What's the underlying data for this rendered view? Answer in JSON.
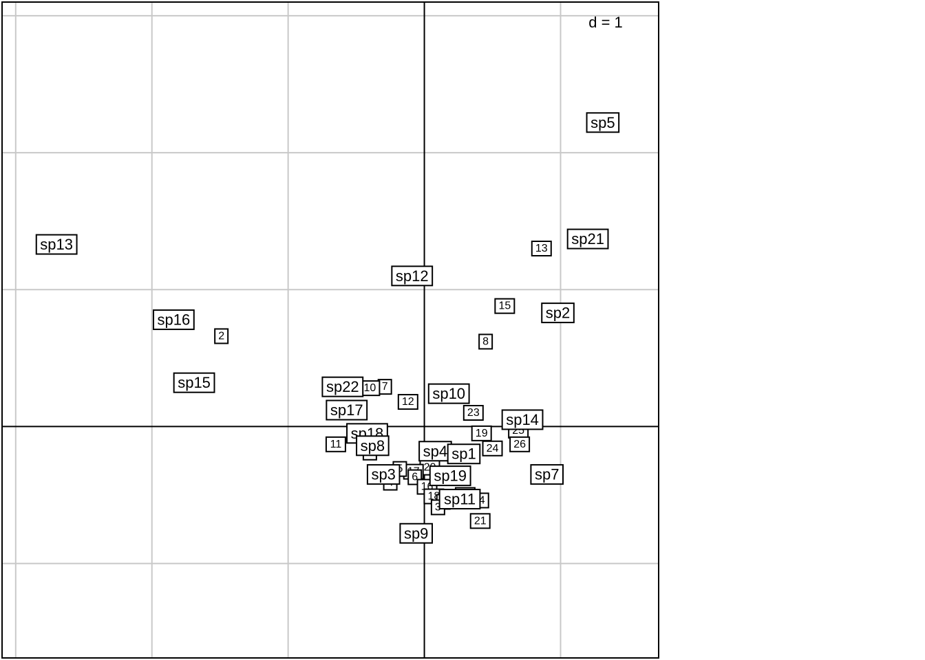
{
  "chart_data": {
    "type": "scatter",
    "scale_label": "d = 1",
    "grid": true,
    "xlim": [
      -3.1,
      1.72
    ],
    "ylim": [
      -1.69,
      3.1
    ],
    "grid_step": 1,
    "species": [
      {
        "label": "sp13",
        "x": -2.7,
        "y": 1.33
      },
      {
        "label": "sp16",
        "x": -1.84,
        "y": 0.78
      },
      {
        "label": "sp15",
        "x": -1.69,
        "y": 0.32
      },
      {
        "label": "sp12",
        "x": -0.09,
        "y": 1.1
      },
      {
        "label": "sp5",
        "x": 1.31,
        "y": 2.22
      },
      {
        "label": "sp21",
        "x": 1.2,
        "y": 1.37
      },
      {
        "label": "sp2",
        "x": 0.98,
        "y": 0.83
      },
      {
        "label": "sp22",
        "x": -0.6,
        "y": 0.29
      },
      {
        "label": "sp17",
        "x": -0.57,
        "y": 0.12
      },
      {
        "label": "sp10",
        "x": 0.18,
        "y": 0.24
      },
      {
        "label": "sp14",
        "x": 0.72,
        "y": 0.05
      },
      {
        "label": "sp18",
        "x": -0.42,
        "y": -0.05
      },
      {
        "label": "sp8",
        "x": -0.38,
        "y": -0.14
      },
      {
        "label": "sp4",
        "x": 0.08,
        "y": -0.18
      },
      {
        "label": "sp1",
        "x": 0.29,
        "y": -0.2
      },
      {
        "label": "sp3",
        "x": -0.3,
        "y": -0.35
      },
      {
        "label": "sp19",
        "x": 0.19,
        "y": -0.36
      },
      {
        "label": "sp7",
        "x": 0.9,
        "y": -0.35
      },
      {
        "label": "sp11",
        "x": 0.26,
        "y": -0.53
      },
      {
        "label": "sp9",
        "x": -0.06,
        "y": -0.78
      }
    ],
    "sites": [
      {
        "label": "2",
        "x": -1.49,
        "y": 0.66
      },
      {
        "label": "13",
        "x": 0.86,
        "y": 1.3
      },
      {
        "label": "15",
        "x": 0.59,
        "y": 0.88
      },
      {
        "label": "8",
        "x": 0.45,
        "y": 0.62
      },
      {
        "label": "7",
        "x": -0.29,
        "y": 0.29
      },
      {
        "label": "10",
        "x": -0.4,
        "y": 0.28
      },
      {
        "label": "12",
        "x": -0.12,
        "y": 0.18
      },
      {
        "label": "23",
        "x": 0.36,
        "y": 0.1
      },
      {
        "label": "19",
        "x": 0.42,
        "y": -0.05
      },
      {
        "label": "25",
        "x": 0.69,
        "y": -0.03
      },
      {
        "label": "26",
        "x": 0.7,
        "y": -0.13
      },
      {
        "label": "24",
        "x": 0.5,
        "y": -0.16
      },
      {
        "label": "11",
        "x": -0.65,
        "y": -0.13
      },
      {
        "label": "9",
        "x": -0.4,
        "y": -0.19
      },
      {
        "label": "20",
        "x": 0.04,
        "y": -0.3
      },
      {
        "label": "17",
        "x": -0.08,
        "y": -0.33
      },
      {
        "label": "5",
        "x": -0.18,
        "y": -0.31
      },
      {
        "label": "6",
        "x": -0.07,
        "y": -0.37
      },
      {
        "label": "4",
        "x": -0.25,
        "y": -0.41
      },
      {
        "label": "16",
        "x": 0.02,
        "y": -0.44
      },
      {
        "label": "18",
        "x": 0.07,
        "y": -0.51
      },
      {
        "label": "1",
        "x": 0.14,
        "y": -0.55
      },
      {
        "label": "3",
        "x": 0.1,
        "y": -0.59
      },
      {
        "label": "14",
        "x": 0.4,
        "y": -0.54
      },
      {
        "label": "22",
        "x": 0.3,
        "y": -0.5
      },
      {
        "label": "21",
        "x": 0.41,
        "y": -0.69
      }
    ]
  }
}
